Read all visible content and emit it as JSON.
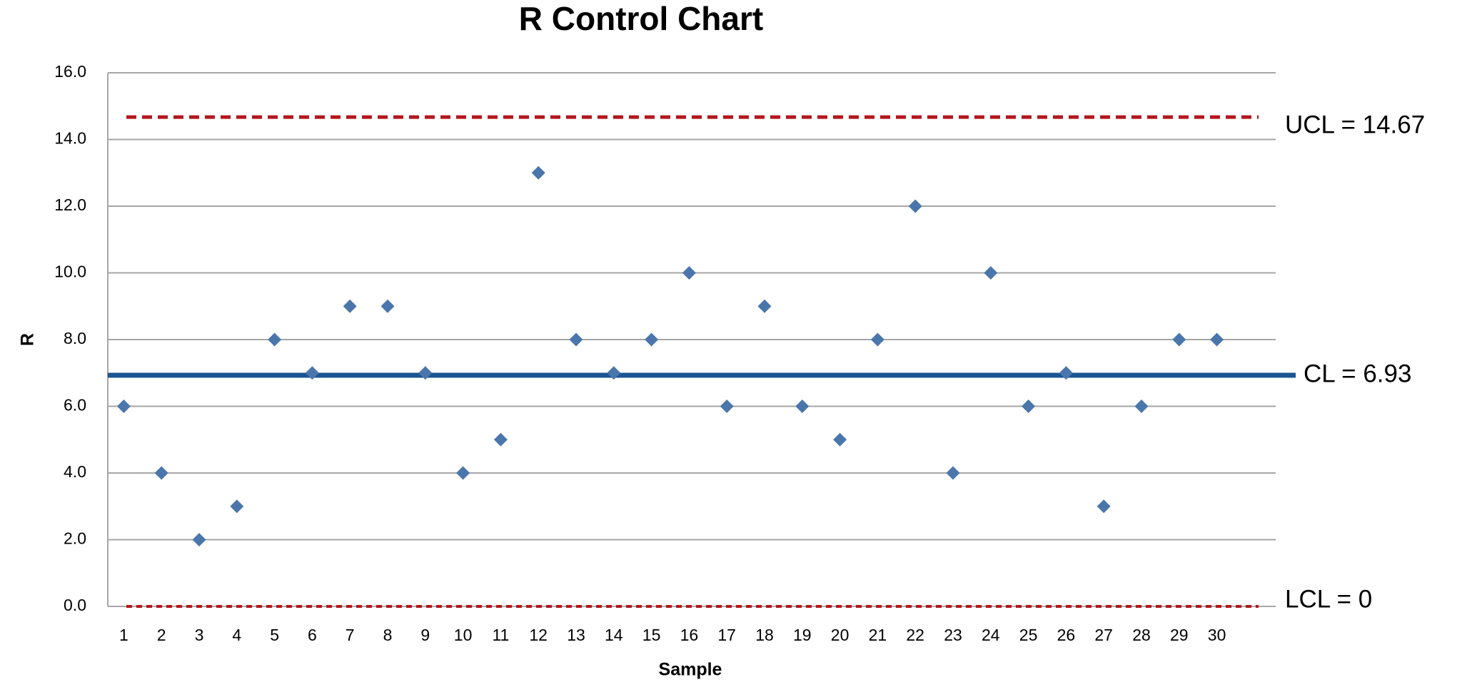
{
  "chart_data": {
    "type": "scatter",
    "title": "R Control Chart",
    "x_label": "Sample",
    "y_label": "R",
    "categories": [
      "1",
      "2",
      "3",
      "4",
      "5",
      "6",
      "7",
      "8",
      "9",
      "10",
      "11",
      "12",
      "13",
      "14",
      "15",
      "16",
      "17",
      "18",
      "19",
      "20",
      "21",
      "22",
      "23",
      "24",
      "25",
      "26",
      "27",
      "28",
      "29",
      "30"
    ],
    "values": [
      6,
      4,
      2,
      3,
      8,
      7,
      9,
      9,
      7,
      4,
      5,
      13,
      8,
      7,
      8,
      10,
      6,
      9,
      6,
      5,
      8,
      12,
      4,
      10,
      6,
      7,
      3,
      6,
      8,
      8
    ],
    "color": "#4a76ac",
    "ylim": [
      0,
      16
    ],
    "yticks": [
      {
        "value": 0,
        "label": "0.0"
      },
      {
        "value": 2,
        "label": "2.0"
      },
      {
        "value": 4,
        "label": "4.0"
      },
      {
        "value": 6,
        "label": "6.0"
      },
      {
        "value": 8,
        "label": "8.0"
      },
      {
        "value": 10,
        "label": "10.0"
      },
      {
        "value": 12,
        "label": "12.0"
      },
      {
        "value": 14,
        "label": "14.0"
      },
      {
        "value": 16,
        "label": "16.0"
      }
    ],
    "grid": true,
    "reference_lines": [
      {
        "label": "UCL = 14.67",
        "value": 14.67,
        "color": "#b3171d",
        "style": "dashed"
      },
      {
        "label": "CL = 6.93",
        "value": 6.93,
        "color": "#1b5593",
        "style": "solid"
      },
      {
        "label": "LCL = 0",
        "value": 0,
        "color": "#b3171d",
        "style": "dotted"
      }
    ]
  }
}
